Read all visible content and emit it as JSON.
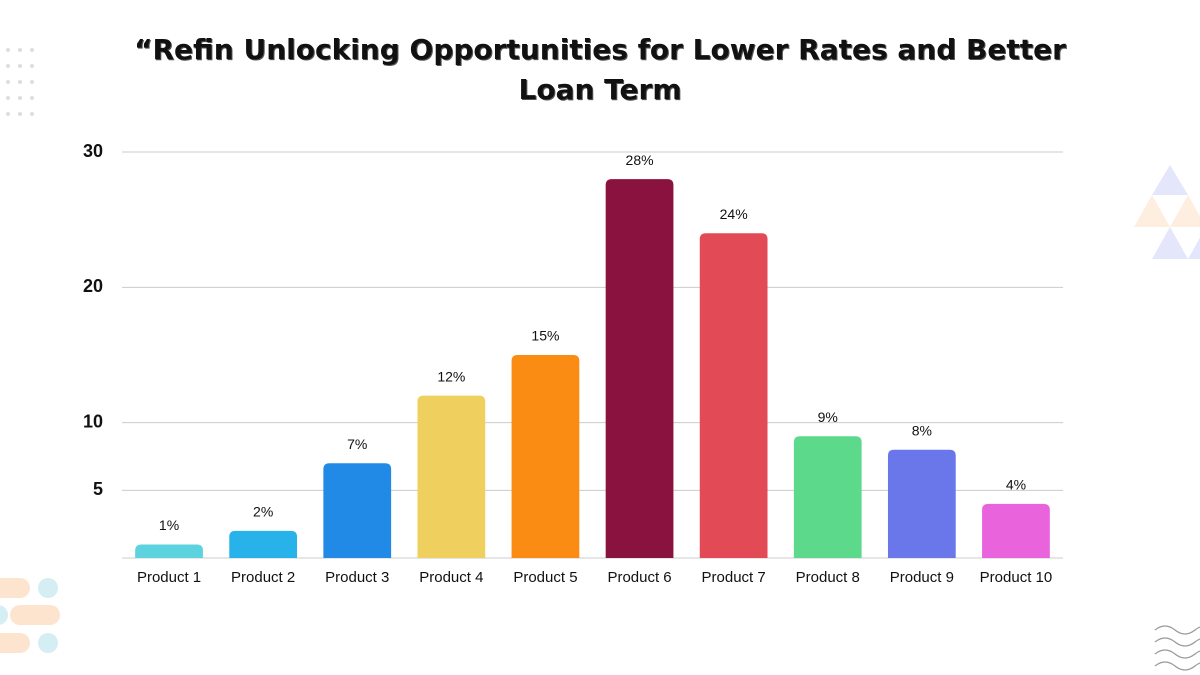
{
  "chart_data": {
    "type": "bar",
    "title": "“Refin Unlocking Opportunities for Lower Rates and Better Loan Term",
    "categories": [
      "Product 1",
      "Product 2",
      "Product 3",
      "Product 4",
      "Product 5",
      "Product 6",
      "Product 7",
      "Product 8",
      "Product 9",
      "Product 10"
    ],
    "values": [
      1,
      2,
      7,
      12,
      15,
      28,
      24,
      9,
      8,
      4
    ],
    "value_labels": [
      "1%",
      "2%",
      "7%",
      "12%",
      "15%",
      "28%",
      "24%",
      "9%",
      "8%",
      "4%"
    ],
    "colors": [
      "#5dd3e0",
      "#27b3ea",
      "#2189e6",
      "#efcf5e",
      "#fb8c13",
      "#8a123e",
      "#e24a55",
      "#5dd98c",
      "#6a77ea",
      "#e964dc"
    ],
    "ylim": [
      0,
      30
    ],
    "yticks": [
      5,
      10,
      20,
      30
    ],
    "grid": true
  }
}
